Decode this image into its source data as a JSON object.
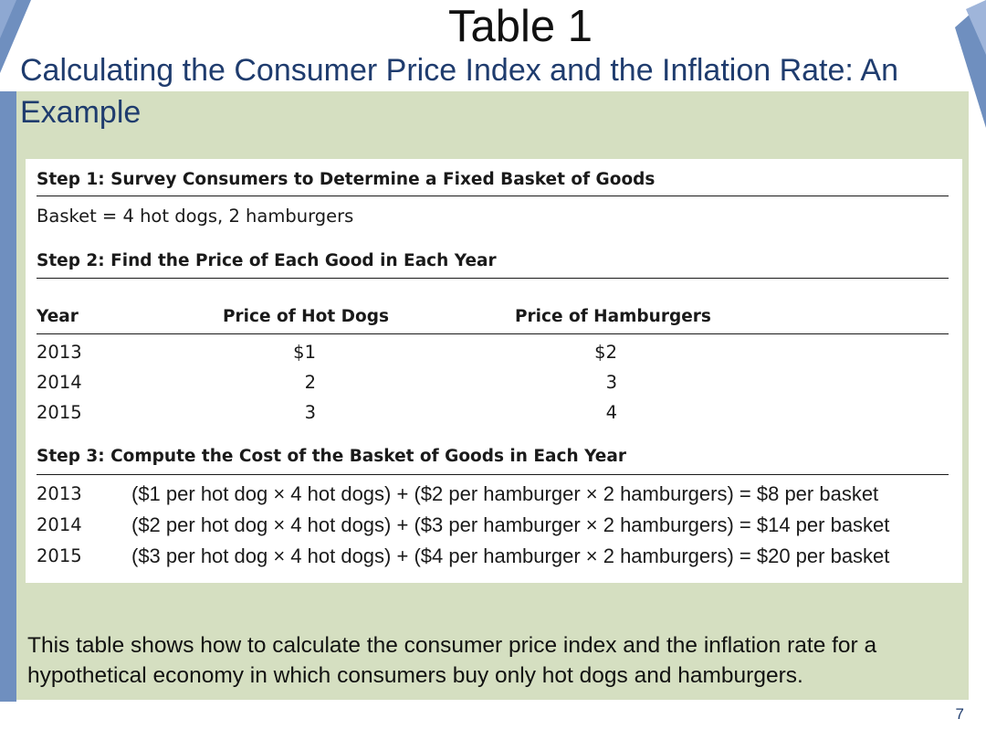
{
  "slide": {
    "title": "Table 1",
    "subtitle": "Calculating the Consumer Price Index and the Inflation Rate: An Example",
    "caption": "This table shows how to calculate the consumer price index and the inflation rate for a hypothetical economy in which consumers buy only hot dogs and hamburgers.",
    "page_number": "7",
    "colors": {
      "panel": "#d5dfc1",
      "accent_blue": "#6f8fbf",
      "subtitle_text": "#1f3c6e"
    }
  },
  "table": {
    "step1": {
      "heading": "Step 1: Survey Consumers to Determine a Fixed Basket of Goods",
      "basket": "Basket = 4 hot dogs, 2 hamburgers"
    },
    "step2": {
      "heading": "Step 2: Find the Price of Each Good in Each Year",
      "columns": [
        "Year",
        "Price of Hot Dogs",
        "Price of Hamburgers"
      ],
      "rows": [
        {
          "year": "2013",
          "hot_dogs": "$1",
          "hamburgers": "$2"
        },
        {
          "year": "2014",
          "hot_dogs": "2",
          "hamburgers": "3"
        },
        {
          "year": "2015",
          "hot_dogs": "3",
          "hamburgers": "4"
        }
      ]
    },
    "step3": {
      "heading": "Step 3: Compute the Cost of the Basket of Goods in Each Year",
      "rows": [
        {
          "year": "2013",
          "calc": "($1 per hot dog × 4 hot dogs) + ($2 per hamburger × 2 hamburgers) = $8 per basket"
        },
        {
          "year": "2014",
          "calc": "($2 per hot dog × 4 hot dogs) + ($3 per hamburger × 2 hamburgers) = $14 per basket"
        },
        {
          "year": "2015",
          "calc": "($3 per hot dog × 4 hot dogs) + ($4 per hamburger × 2 hamburgers) = $20 per basket"
        }
      ]
    }
  }
}
